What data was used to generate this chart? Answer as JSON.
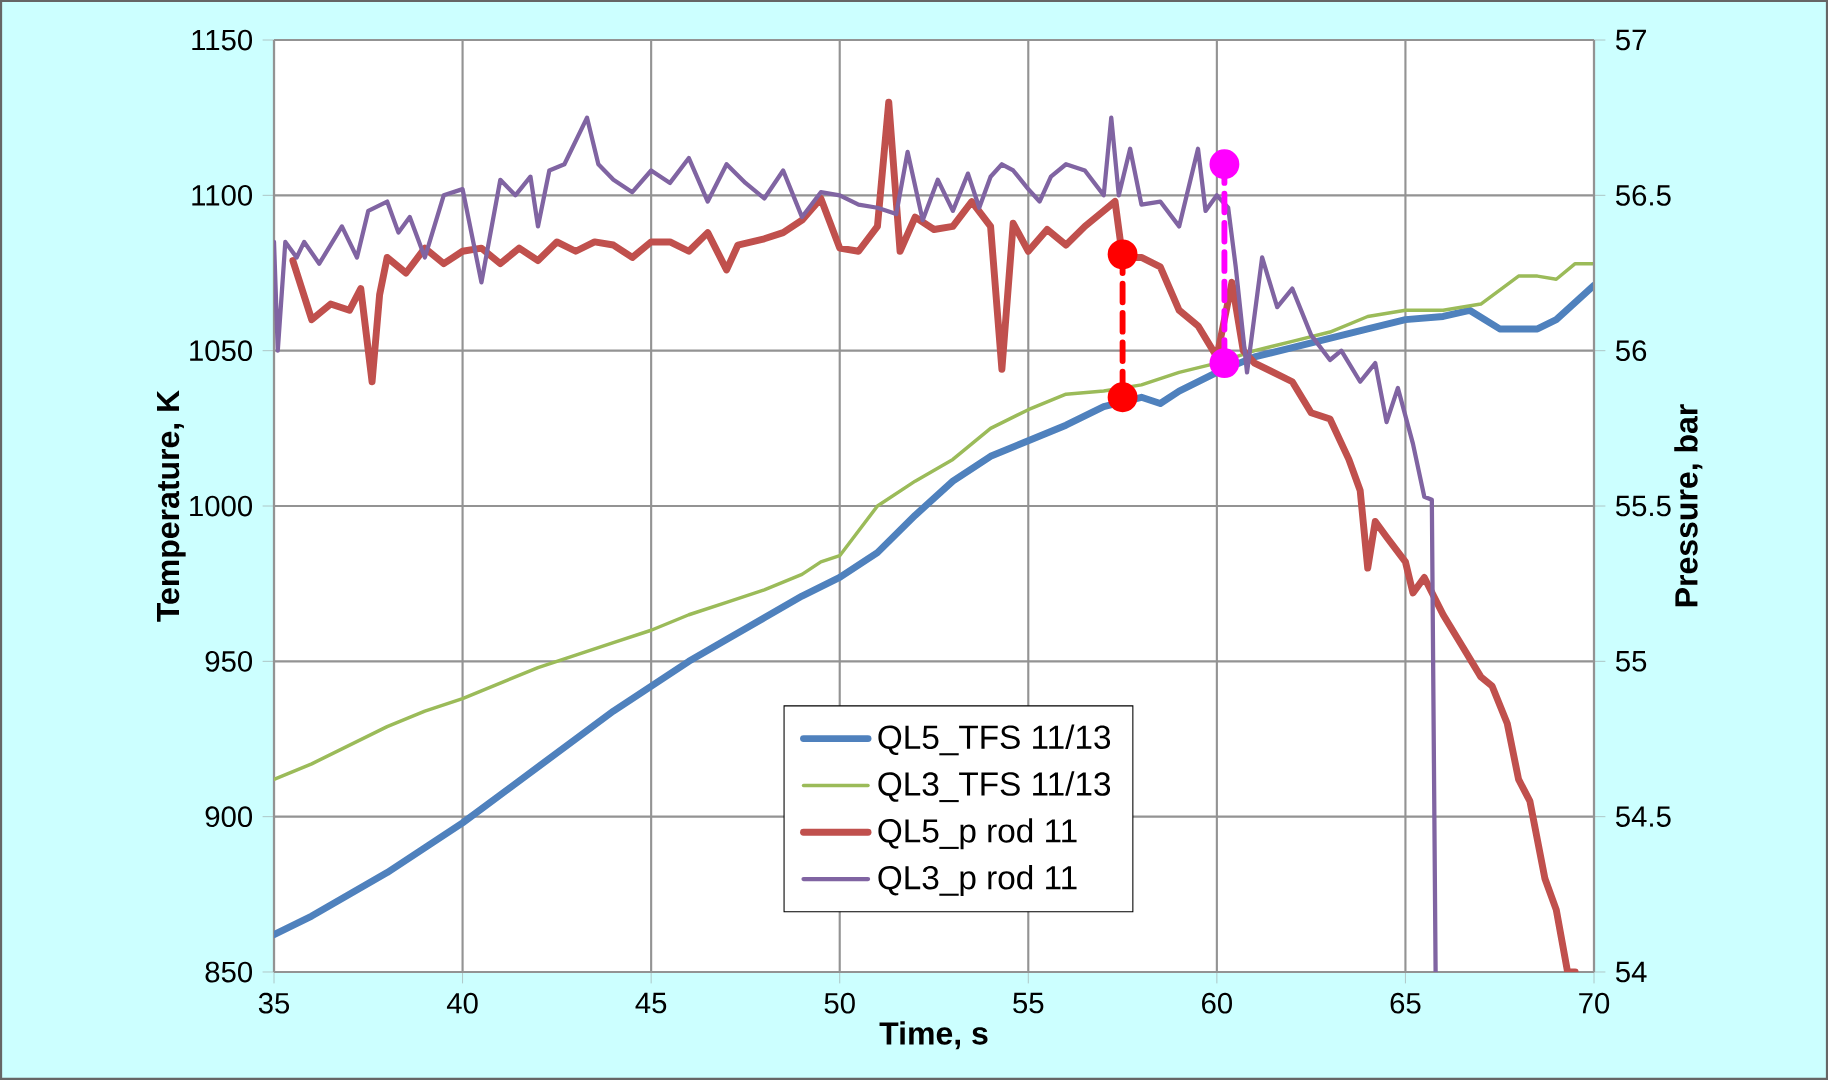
{
  "chart_data": {
    "type": "line",
    "xlabel": "Time, s",
    "ylabel": "Temperature, K",
    "y2label": "Pressure, bar",
    "xlim": [
      35,
      70
    ],
    "xticks": [
      35,
      40,
      45,
      50,
      55,
      60,
      65,
      70
    ],
    "ylim": [
      850,
      1150
    ],
    "yticks": [
      850,
      900,
      950,
      1000,
      1050,
      1100,
      1150
    ],
    "y2lim": [
      54,
      57
    ],
    "y2ticks": [
      54,
      54.5,
      55,
      55.5,
      56,
      56.5,
      57
    ],
    "grid": true,
    "legend": "bottom",
    "series": [
      {
        "name": "QL5_TFS 11/13",
        "color": "#4f81bd",
        "x": [
          35,
          36,
          37,
          38,
          39,
          40,
          41,
          42,
          43,
          44,
          45,
          46,
          47,
          48,
          49,
          50,
          51,
          52,
          53,
          54,
          55,
          56,
          57,
          57.5,
          58,
          58.5,
          59,
          60,
          61,
          62,
          63,
          64,
          65,
          66,
          66.7,
          67.5,
          68.5,
          69,
          70
        ],
        "values": [
          862,
          868,
          875,
          882,
          890,
          898,
          907,
          916,
          925,
          934,
          942,
          950,
          957,
          964,
          971,
          977,
          985,
          997,
          1008,
          1016,
          1021,
          1026,
          1032,
          null,
          1035,
          1033,
          1037,
          1043,
          1048,
          1051,
          1054,
          1057,
          1060,
          1061,
          1063,
          1057,
          1057,
          1060,
          1071
        ]
      },
      {
        "name": "QL3_TFS 11/13",
        "color": "#9bbb59",
        "x": [
          35,
          36,
          37,
          38,
          39,
          40,
          41,
          42,
          43,
          44,
          45,
          46,
          47,
          48,
          49,
          49.5,
          50,
          51,
          52,
          53,
          54,
          55,
          56,
          57,
          58,
          59,
          60,
          61,
          62,
          63,
          64,
          65,
          66,
          67,
          68,
          68.5,
          69,
          69.5,
          70
        ],
        "values": [
          912,
          917,
          923,
          929,
          934,
          938,
          943,
          948,
          952,
          956,
          960,
          965,
          969,
          973,
          978,
          982,
          984,
          1000,
          1008,
          1015,
          1025,
          1031,
          1036,
          1037,
          1039,
          1043,
          1046,
          1050,
          1053,
          1056,
          1061,
          1063,
          1063,
          1065,
          1074,
          1074,
          1073,
          1078,
          1078
        ]
      },
      {
        "name": "QL5_p rod 11",
        "color": "#c0504d",
        "axis": "y2",
        "x": [
          35.5,
          36,
          36.5,
          37,
          37.3,
          37.6,
          37.8,
          38,
          38.5,
          39,
          39.5,
          40,
          40.5,
          41,
          41.5,
          42,
          42.5,
          43,
          43.5,
          44,
          44.5,
          45,
          45.5,
          46,
          46.5,
          47,
          47.3,
          48,
          48.5,
          49,
          49.5,
          50,
          50.5,
          51,
          51.3,
          51.6,
          52,
          52.5,
          53,
          53.5,
          54,
          54.3,
          54.6,
          55,
          55.5,
          56,
          56.5,
          57,
          57.3,
          57.5,
          58,
          58.5,
          59,
          59.5,
          60,
          60.4,
          60.7,
          61,
          61.5,
          62,
          62.5,
          63,
          63.5,
          63.8,
          64,
          64.2,
          64.5,
          65,
          65.2,
          65.5,
          66,
          66.5,
          67,
          67.3,
          67.7,
          68,
          68.3,
          68.7,
          69,
          69.3,
          69.5
        ],
        "values": [
          56.29,
          56.1,
          56.15,
          56.13,
          56.2,
          55.9,
          56.18,
          56.3,
          56.25,
          56.33,
          56.28,
          56.32,
          56.33,
          56.28,
          56.33,
          56.29,
          56.35,
          56.32,
          56.35,
          56.34,
          56.3,
          56.35,
          56.35,
          56.32,
          56.38,
          56.26,
          56.34,
          56.36,
          56.38,
          56.42,
          56.49,
          56.33,
          56.32,
          56.4,
          56.8,
          56.32,
          56.43,
          56.39,
          56.4,
          56.48,
          56.4,
          55.94,
          56.41,
          56.32,
          56.39,
          56.34,
          56.4,
          56.45,
          56.48,
          56.3,
          56.3,
          56.27,
          56.13,
          56.08,
          55.98,
          56.22,
          56.0,
          55.96,
          55.93,
          55.9,
          55.8,
          55.78,
          55.65,
          55.55,
          55.3,
          55.45,
          55.4,
          55.32,
          55.22,
          55.27,
          55.15,
          55.05,
          54.95,
          54.92,
          54.8,
          54.62,
          54.55,
          54.3,
          54.2,
          54.0,
          54.0
        ]
      },
      {
        "name": "QL3_p rod 11",
        "color": "#8064a2",
        "axis": "y2",
        "x": [
          35,
          35.1,
          35.3,
          35.6,
          35.8,
          36.2,
          36.8,
          37.2,
          37.5,
          38,
          38.3,
          38.6,
          39,
          39.5,
          40,
          40.5,
          41,
          41.4,
          41.8,
          42,
          42.3,
          42.7,
          43.3,
          43.6,
          44,
          44.5,
          45,
          45.5,
          46,
          46.5,
          47,
          47.5,
          48,
          48.5,
          49,
          49.5,
          50,
          50.5,
          51,
          51.5,
          51.8,
          52.2,
          52.6,
          53,
          53.4,
          53.7,
          54,
          54.3,
          54.6,
          55,
          55.3,
          55.6,
          56,
          56.5,
          57,
          57.2,
          57.4,
          57.7,
          58,
          58.5,
          59,
          59.5,
          59.7,
          60,
          60.3,
          60.5,
          60.8,
          61.2,
          61.6,
          62,
          62.5,
          63,
          63.3,
          63.8,
          64.2,
          64.5,
          64.8,
          65.2,
          65.5,
          65.7,
          65.8
        ],
        "values": [
          56.35,
          56.0,
          56.35,
          56.3,
          56.35,
          56.28,
          56.4,
          56.3,
          56.45,
          56.48,
          56.38,
          56.43,
          56.3,
          56.5,
          56.52,
          56.22,
          56.55,
          56.5,
          56.56,
          56.4,
          56.58,
          56.6,
          56.75,
          56.6,
          56.55,
          56.51,
          56.58,
          56.54,
          56.62,
          56.48,
          56.6,
          56.54,
          56.49,
          56.58,
          56.43,
          56.51,
          56.5,
          56.47,
          56.46,
          56.44,
          56.64,
          56.42,
          56.55,
          56.45,
          56.57,
          56.46,
          56.56,
          56.6,
          56.58,
          56.52,
          56.48,
          56.56,
          56.6,
          56.58,
          56.5,
          56.75,
          56.5,
          56.65,
          56.47,
          56.48,
          56.4,
          56.65,
          56.45,
          56.5,
          56.46,
          56.27,
          55.93,
          56.3,
          56.14,
          56.2,
          56.05,
          55.97,
          56.0,
          55.9,
          55.96,
          55.77,
          55.88,
          55.7,
          55.53,
          55.52,
          54.0
        ]
      },
      {
        "color": "#ff0000",
        "marker": "circle",
        "line_style": "dashed",
        "x": [
          57.5,
          57.5
        ],
        "values": [
          1081,
          1035
        ]
      },
      {
        "color": "#ff00ff",
        "marker": "circle",
        "line_style": "dashed",
        "x": [
          60.2,
          60.2
        ],
        "values": [
          1110,
          1046
        ]
      }
    ]
  }
}
